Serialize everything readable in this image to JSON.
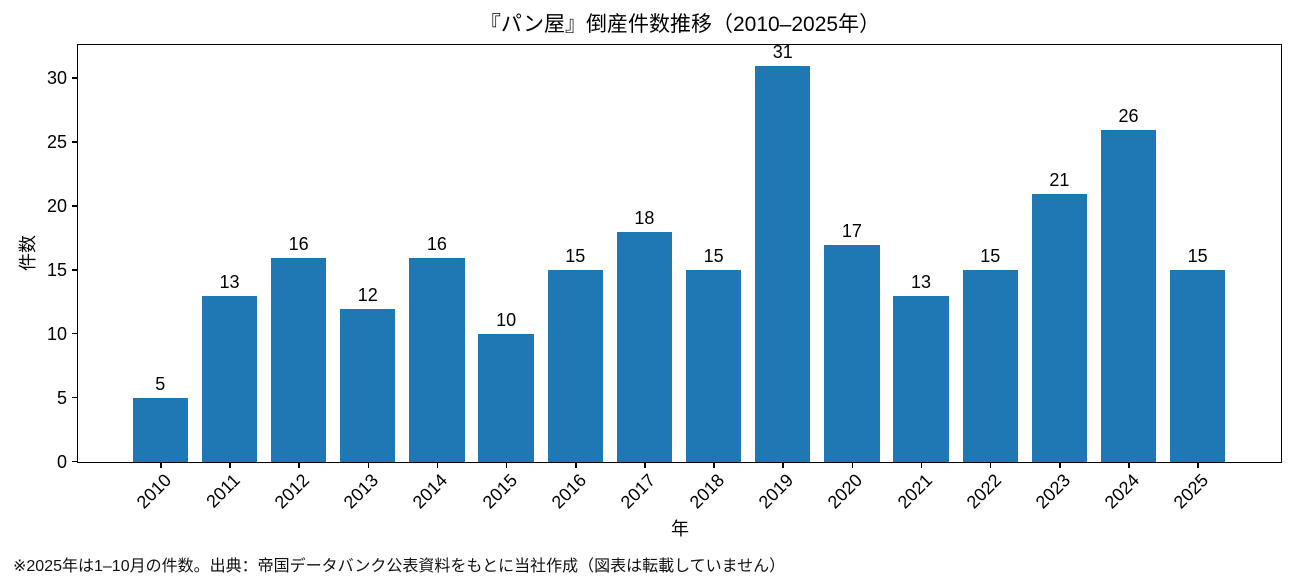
{
  "figure": {
    "footnote": "※2025年は1–10月の件数。出典：帝国データバンク公表資料をもとに当社作成（図表は転載していません）"
  },
  "chart_data": {
    "type": "bar",
    "title": "『パン屋』倒産件数推移（2010–2025年）",
    "xlabel": "年",
    "ylabel": "件数",
    "categories": [
      "2010",
      "2011",
      "2012",
      "2013",
      "2014",
      "2015",
      "2016",
      "2017",
      "2018",
      "2019",
      "2020",
      "2021",
      "2022",
      "2023",
      "2024",
      "2025"
    ],
    "values": [
      5,
      13,
      16,
      12,
      16,
      10,
      15,
      18,
      15,
      31,
      17,
      13,
      15,
      21,
      26,
      15
    ],
    "yticks": [
      0,
      5,
      10,
      15,
      20,
      25,
      30
    ],
    "ylim": [
      0,
      32.55
    ],
    "bar_color": "#1f77b4",
    "bar_width_frac": 0.8,
    "value_labels_shown": true,
    "grid": false,
    "legend": "none",
    "x_tick_rotation_deg": 45
  }
}
